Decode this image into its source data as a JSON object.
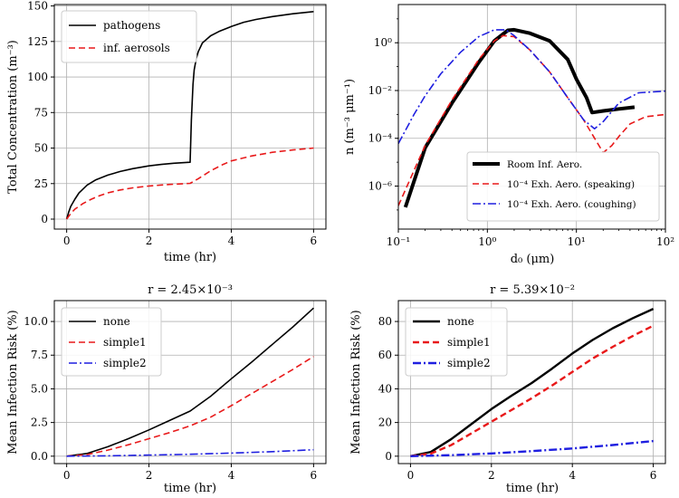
{
  "chart_data": [
    {
      "id": "p1",
      "type": "line",
      "title": "",
      "xlabel": "time (hr)",
      "ylabel": "Total Concentration (m⁻³)",
      "xlim": [
        -0.3,
        6.3
      ],
      "ylim": [
        -7,
        151
      ],
      "xticks": [
        0,
        2,
        4,
        6
      ],
      "yticks": [
        0,
        25,
        50,
        75,
        100,
        125,
        150
      ],
      "grid": true,
      "legend": "top-left",
      "series": [
        {
          "name": "pathogens",
          "color": "#000000",
          "style": "solid",
          "width": 1.6,
          "x": [
            0,
            0.05,
            0.1,
            0.2,
            0.3,
            0.5,
            0.7,
            1.0,
            1.3,
            1.6,
            2.0,
            2.3,
            2.6,
            2.99,
            3.0,
            3.03,
            3.07,
            3.1,
            3.15,
            3.2,
            3.3,
            3.5,
            3.7,
            4.0,
            4.3,
            4.6,
            5.0,
            5.5,
            6.0
          ],
          "y": [
            0,
            5,
            9,
            14,
            18.5,
            24,
            27.5,
            31,
            33.5,
            35.5,
            37.5,
            38.5,
            39.3,
            40,
            40,
            70,
            95,
            105,
            113,
            118,
            124,
            129,
            132,
            135.5,
            138.5,
            140.5,
            142.5,
            144.5,
            146
          ]
        },
        {
          "name": "inf. aerosols",
          "color": "#e8191a",
          "style": "dashed",
          "width": 1.6,
          "x": [
            0,
            0.1,
            0.2,
            0.4,
            0.6,
            0.8,
            1.0,
            1.3,
            1.6,
            2.0,
            2.5,
            3.0,
            3.2,
            3.5,
            3.8,
            4.0,
            4.5,
            5.0,
            5.5,
            6.0
          ],
          "y": [
            0,
            4,
            7,
            11,
            14,
            16.5,
            18.5,
            20.5,
            22,
            23.3,
            24.4,
            25.2,
            28.5,
            34,
            38.5,
            41,
            44.5,
            47,
            48.7,
            50
          ]
        }
      ]
    },
    {
      "id": "p2",
      "type": "line",
      "title": "",
      "xlabel": "d₀ (μm)",
      "ylabel": "n  (m⁻³ μm⁻¹)",
      "xscale": "log",
      "yscale": "log",
      "xlim": [
        0.1,
        100
      ],
      "ylim_exp": [
        -7.8,
        1.6
      ],
      "xtick_labels": [
        "10⁻¹",
        "10⁰",
        "10¹",
        "10²"
      ],
      "ytick_labels": [
        "10⁻⁶",
        "10⁻⁴",
        "10⁻²",
        "10⁰"
      ],
      "grid": true,
      "legend": "lower-right",
      "series": [
        {
          "name": "Room Inf. Aero.",
          "color": "#000000",
          "style": "solid",
          "width": 4,
          "x": [
            0.12,
            0.2,
            0.4,
            0.8,
            1.2,
            1.7,
            2.0,
            3.0,
            5.0,
            8.0,
            10.0,
            13.0,
            15.0,
            20.0,
            30.0,
            45.0
          ],
          "y": [
            1.3e-07,
            4e-05,
            0.003,
            0.15,
            1.2,
            3.3,
            3.5,
            2.5,
            1.2,
            0.2,
            0.03,
            0.005,
            0.0012,
            0.0014,
            0.0017,
            0.002
          ]
        },
        {
          "name": "10⁻⁴ Exh. Aero. (speaking)",
          "color": "#e8191a",
          "style": "dashed",
          "width": 1.6,
          "x": [
            0.1,
            0.2,
            0.4,
            0.8,
            1.2,
            1.5,
            2.0,
            3.0,
            5.0,
            8.0,
            12.0,
            15.0,
            20.0,
            25.0,
            30.0,
            40.0,
            60.0,
            100.0
          ],
          "y": [
            1.5e-07,
            5e-05,
            0.004,
            0.2,
            1.2,
            2.0,
            1.8,
            0.5,
            0.06,
            0.005,
            0.0006,
            0.00015,
            2.5e-05,
            5e-05,
            0.00012,
            0.0004,
            0.0008,
            0.001
          ]
        },
        {
          "name": "10⁻⁴ Exh. Aero. (coughing)",
          "color": "#1f1fe0",
          "style": "dashdot",
          "width": 1.6,
          "x": [
            0.1,
            0.15,
            0.2,
            0.3,
            0.5,
            0.8,
            1.2,
            1.6,
            2.0,
            3.0,
            5.0,
            8.0,
            12.0,
            16.0,
            20.0,
            30.0,
            50.0,
            100.0
          ],
          "y": [
            6e-05,
            0.001,
            0.006,
            0.05,
            0.4,
            1.8,
            3.5,
            3.5,
            2.0,
            0.5,
            0.06,
            0.005,
            0.0006,
            0.00025,
            0.0005,
            0.003,
            0.008,
            0.0095
          ]
        }
      ]
    },
    {
      "id": "p3",
      "type": "line",
      "title": "r = 2.45×10⁻³",
      "xlabel": "time (hr)",
      "ylabel": "Mean Infection Risk (%)",
      "xlim": [
        -0.3,
        6.3
      ],
      "ylim": [
        -0.55,
        11.55
      ],
      "xticks": [
        0,
        2,
        4,
        6
      ],
      "yticks": [
        0.0,
        2.5,
        5.0,
        7.5,
        10.0
      ],
      "ytick_labels": [
        "0.0",
        "2.5",
        "5.0",
        "7.5",
        "10.0"
      ],
      "grid": true,
      "legend": "top-left",
      "series": [
        {
          "name": "none",
          "color": "#000000",
          "style": "solid",
          "width": 1.6,
          "x": [
            0,
            0.5,
            1.0,
            1.5,
            2.0,
            2.5,
            3.0,
            3.5,
            4.0,
            4.5,
            5.0,
            5.5,
            6.0
          ],
          "y": [
            0,
            0.2,
            0.7,
            1.3,
            1.95,
            2.65,
            3.35,
            4.45,
            5.75,
            7.0,
            8.3,
            9.6,
            11.0
          ]
        },
        {
          "name": "simple1",
          "color": "#e8191a",
          "style": "dashed",
          "width": 1.6,
          "x": [
            0,
            0.5,
            1.0,
            1.5,
            2.0,
            2.5,
            3.0,
            3.5,
            4.0,
            4.5,
            5.0,
            5.5,
            6.0
          ],
          "y": [
            0,
            0.12,
            0.45,
            0.85,
            1.3,
            1.75,
            2.25,
            2.9,
            3.75,
            4.65,
            5.55,
            6.45,
            7.4
          ]
        },
        {
          "name": "simple2",
          "color": "#1f1fe0",
          "style": "dashdot",
          "width": 1.6,
          "x": [
            0,
            1,
            2,
            3,
            4,
            5,
            6
          ],
          "y": [
            0,
            0.03,
            0.08,
            0.14,
            0.23,
            0.34,
            0.48
          ]
        }
      ]
    },
    {
      "id": "p4",
      "type": "line",
      "title": "r = 5.39×10⁻²",
      "xlabel": "time (hr)",
      "ylabel": "Mean Infection Risk (%)",
      "xlim": [
        -0.3,
        6.3
      ],
      "ylim": [
        -4.4,
        92.4
      ],
      "xticks": [
        0,
        2,
        4,
        6
      ],
      "yticks": [
        0,
        20,
        40,
        60,
        80
      ],
      "grid": true,
      "legend": "top-left",
      "series": [
        {
          "name": "none",
          "color": "#000000",
          "style": "solid",
          "width": 2.4,
          "x": [
            0,
            0.5,
            1.0,
            1.5,
            2.0,
            2.5,
            3.0,
            3.5,
            4.0,
            4.5,
            5.0,
            5.5,
            6.0
          ],
          "y": [
            0,
            2.5,
            10,
            19,
            28,
            36,
            43.5,
            52,
            61,
            69,
            76,
            82,
            87.5
          ]
        },
        {
          "name": "simple1",
          "color": "#e8191a",
          "style": "dashed",
          "width": 2.4,
          "x": [
            0,
            0.5,
            1.0,
            1.5,
            2.0,
            2.5,
            3.0,
            3.5,
            4.0,
            4.5,
            5.0,
            5.5,
            6.0
          ],
          "y": [
            0,
            1.5,
            6.5,
            13.5,
            20.5,
            27.5,
            34.5,
            42,
            50,
            58,
            65,
            71.5,
            77.5
          ]
        },
        {
          "name": "simple2",
          "color": "#1f1fe0",
          "style": "dashdot",
          "width": 2.4,
          "x": [
            0,
            1,
            2,
            3,
            4,
            5,
            6
          ],
          "y": [
            0,
            0.6,
            1.6,
            3.0,
            4.6,
            6.6,
            9.0
          ]
        }
      ]
    }
  ]
}
